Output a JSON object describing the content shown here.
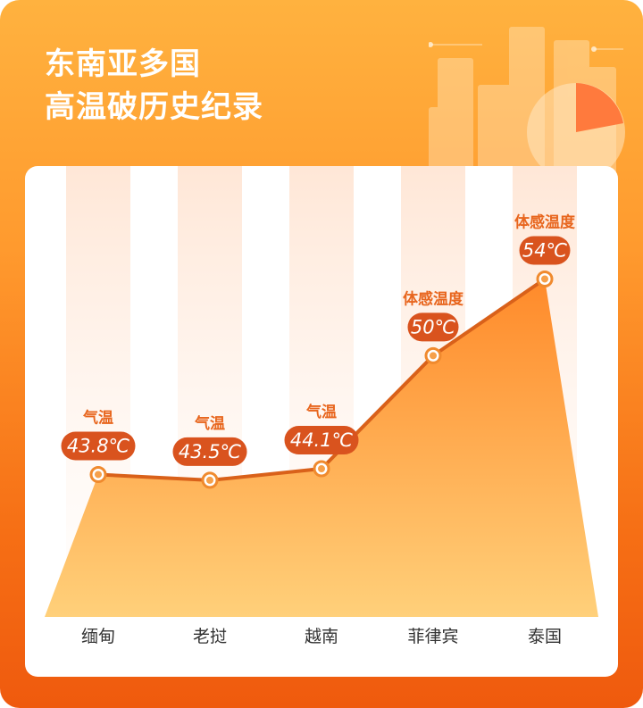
{
  "title": {
    "line1": "东南亚多国",
    "line2": "高温破历史纪录"
  },
  "colors": {
    "background_top": "#ffb23f",
    "background_bottom": "#ef5a0e",
    "line": "#d9611a",
    "area_top": "#ff8a2a",
    "area_bottom": "#ffd07a",
    "badge": "#d9531e",
    "label_text": "#e8661e"
  },
  "chart_data": {
    "type": "area",
    "categories": [
      "缅甸",
      "老挝",
      "越南",
      "菲律宾",
      "泰国"
    ],
    "values": [
      43.8,
      43.5,
      44.1,
      50,
      54
    ],
    "value_labels": [
      "43.8℃",
      "43.5℃",
      "44.1℃",
      "50℃",
      "54℃"
    ],
    "point_types": [
      "气温",
      "气温",
      "气温",
      "体感温度",
      "体感温度"
    ],
    "unit": "℃",
    "ylim": [
      38,
      55
    ],
    "grid": false
  }
}
